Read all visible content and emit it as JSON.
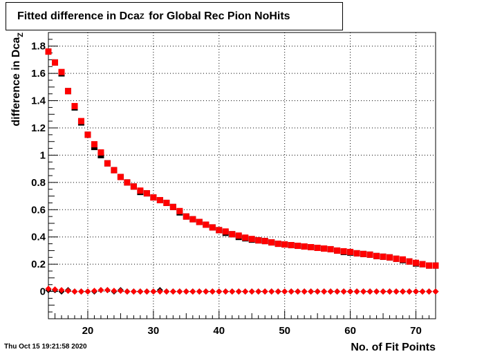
{
  "chart_data": {
    "type": "scatter",
    "title_main": "Fitted difference in Dca",
    "title_sub": "Z",
    "title_rest": "for Global Rec Pion NoHits",
    "xlabel": "No. of Fit Points",
    "ylabel_main": "difference in Dca",
    "ylabel_sub": "Z",
    "xlim": [
      14,
      73
    ],
    "ylim": [
      -0.2,
      1.9
    ],
    "xticks": [
      20,
      30,
      40,
      50,
      60,
      70
    ],
    "yticks": [
      0,
      0.2,
      0.4,
      0.6,
      0.8,
      1,
      1.2,
      1.4,
      1.6,
      1.8
    ],
    "ytick_labels": [
      "0",
      "0.2",
      "0.4",
      "0.6",
      "0.8",
      "1",
      "1.2",
      "1.4",
      "1.6",
      "1.8"
    ],
    "grid": true,
    "series": [
      {
        "marker": "square",
        "color": "#000000",
        "x": [
          14,
          15,
          16,
          17,
          18,
          19,
          20,
          21,
          22,
          23,
          24,
          25,
          26,
          27,
          28,
          29,
          30,
          31,
          32,
          33,
          34,
          35,
          36,
          37,
          38,
          39,
          40,
          41,
          42,
          43,
          44,
          45,
          46,
          47,
          48,
          49,
          50,
          51,
          52,
          53,
          54,
          55,
          56,
          57,
          58,
          59,
          60,
          61,
          62,
          63,
          64,
          65,
          66,
          67,
          68,
          69,
          70,
          71,
          72,
          73
        ],
        "y": [
          1.76,
          1.68,
          1.6,
          1.47,
          1.35,
          1.24,
          1.15,
          1.06,
          1.0,
          0.94,
          0.89,
          0.84,
          0.8,
          0.77,
          0.73,
          0.72,
          0.69,
          0.67,
          0.65,
          0.62,
          0.58,
          0.55,
          0.53,
          0.51,
          0.49,
          0.47,
          0.45,
          0.43,
          0.42,
          0.4,
          0.39,
          0.38,
          0.375,
          0.37,
          0.36,
          0.35,
          0.345,
          0.34,
          0.335,
          0.33,
          0.325,
          0.32,
          0.315,
          0.31,
          0.3,
          0.29,
          0.285,
          0.28,
          0.275,
          0.27,
          0.26,
          0.255,
          0.25,
          0.24,
          0.23,
          0.22,
          0.205,
          0.2,
          0.19,
          0.19
        ]
      },
      {
        "marker": "square",
        "color": "#ff0000",
        "x": [
          14,
          15,
          16,
          17,
          18,
          19,
          20,
          21,
          22,
          23,
          24,
          25,
          26,
          27,
          28,
          29,
          30,
          31,
          32,
          33,
          34,
          35,
          36,
          37,
          38,
          39,
          40,
          41,
          42,
          43,
          44,
          45,
          46,
          47,
          48,
          49,
          50,
          51,
          52,
          53,
          54,
          55,
          56,
          57,
          58,
          59,
          60,
          61,
          62,
          63,
          64,
          65,
          66,
          67,
          68,
          69,
          70,
          71,
          72,
          73
        ],
        "y": [
          1.76,
          1.68,
          1.61,
          1.47,
          1.36,
          1.25,
          1.15,
          1.08,
          1.02,
          0.94,
          0.89,
          0.84,
          0.8,
          0.77,
          0.74,
          0.72,
          0.69,
          0.67,
          0.65,
          0.62,
          0.59,
          0.55,
          0.53,
          0.51,
          0.49,
          0.47,
          0.45,
          0.44,
          0.42,
          0.41,
          0.395,
          0.385,
          0.375,
          0.37,
          0.36,
          0.35,
          0.345,
          0.34,
          0.335,
          0.33,
          0.325,
          0.32,
          0.315,
          0.31,
          0.3,
          0.295,
          0.29,
          0.28,
          0.275,
          0.27,
          0.26,
          0.255,
          0.25,
          0.24,
          0.235,
          0.22,
          0.21,
          0.2,
          0.19,
          0.19
        ]
      },
      {
        "marker": "diamond",
        "color": "#000000",
        "x": [
          14,
          15,
          16,
          17,
          18,
          19,
          20,
          21,
          22,
          23,
          24,
          25,
          26,
          27,
          28,
          29,
          30,
          31,
          32,
          33,
          34,
          35,
          36,
          37,
          38,
          39,
          40,
          41,
          42,
          43,
          44,
          45,
          46,
          47,
          48,
          49,
          50,
          51,
          52,
          53,
          54,
          55,
          56,
          57,
          58,
          59,
          60,
          61,
          62,
          63,
          64,
          65,
          66,
          67,
          68,
          69,
          70,
          71,
          72,
          73
        ],
        "y": [
          0.01,
          0.01,
          0.0,
          0.01,
          0.0,
          0.0,
          0.0,
          0.0,
          0.01,
          0.01,
          0.0,
          0.01,
          0.0,
          0.0,
          0.0,
          0.0,
          0.0,
          0.01,
          0.0,
          0.0,
          0.0,
          0.0,
          0.0,
          0.0,
          0.0,
          0.0,
          0.0,
          0.0,
          0.0,
          0.0,
          0.0,
          0.0,
          0.0,
          0.0,
          0.0,
          0.0,
          0.0,
          0.0,
          0.0,
          0.0,
          0.0,
          0.0,
          0.0,
          0.0,
          0.0,
          0.0,
          0.0,
          0.0,
          0.0,
          0.0,
          0.0,
          0.0,
          0.0,
          0.0,
          0.0,
          0.0,
          0.0,
          0.0,
          0.0,
          0.0
        ]
      },
      {
        "marker": "diamond",
        "color": "#ff0000",
        "x": [
          14,
          15,
          16,
          17,
          18,
          19,
          20,
          21,
          22,
          23,
          24,
          25,
          26,
          27,
          28,
          29,
          30,
          31,
          32,
          33,
          34,
          35,
          36,
          37,
          38,
          39,
          40,
          41,
          42,
          43,
          44,
          45,
          46,
          47,
          48,
          49,
          50,
          51,
          52,
          53,
          54,
          55,
          56,
          57,
          58,
          59,
          60,
          61,
          62,
          63,
          64,
          65,
          66,
          67,
          68,
          69,
          70,
          71,
          72,
          73
        ],
        "y": [
          0.02,
          0.015,
          0.01,
          0.005,
          0.0,
          0.0,
          0.0,
          0.005,
          0.01,
          0.01,
          0.005,
          0.005,
          0.0,
          0.0,
          0.0,
          0.0,
          0.0,
          0.0,
          0.0,
          0.0,
          0.0,
          0.0,
          0.0,
          0.0,
          0.0,
          0.0,
          0.0,
          0.0,
          0.0,
          0.0,
          0.0,
          0.0,
          0.0,
          0.0,
          0.0,
          0.0,
          0.0,
          0.0,
          0.0,
          0.0,
          0.0,
          0.0,
          0.0,
          0.0,
          0.0,
          0.0,
          0.0,
          0.0,
          0.0,
          0.0,
          0.0,
          0.0,
          0.0,
          0.0,
          0.0,
          0.0,
          0.0,
          0.0,
          0.0,
          0.0
        ]
      }
    ]
  },
  "timestamp": "Thu Oct 15 19:21:58 2020"
}
